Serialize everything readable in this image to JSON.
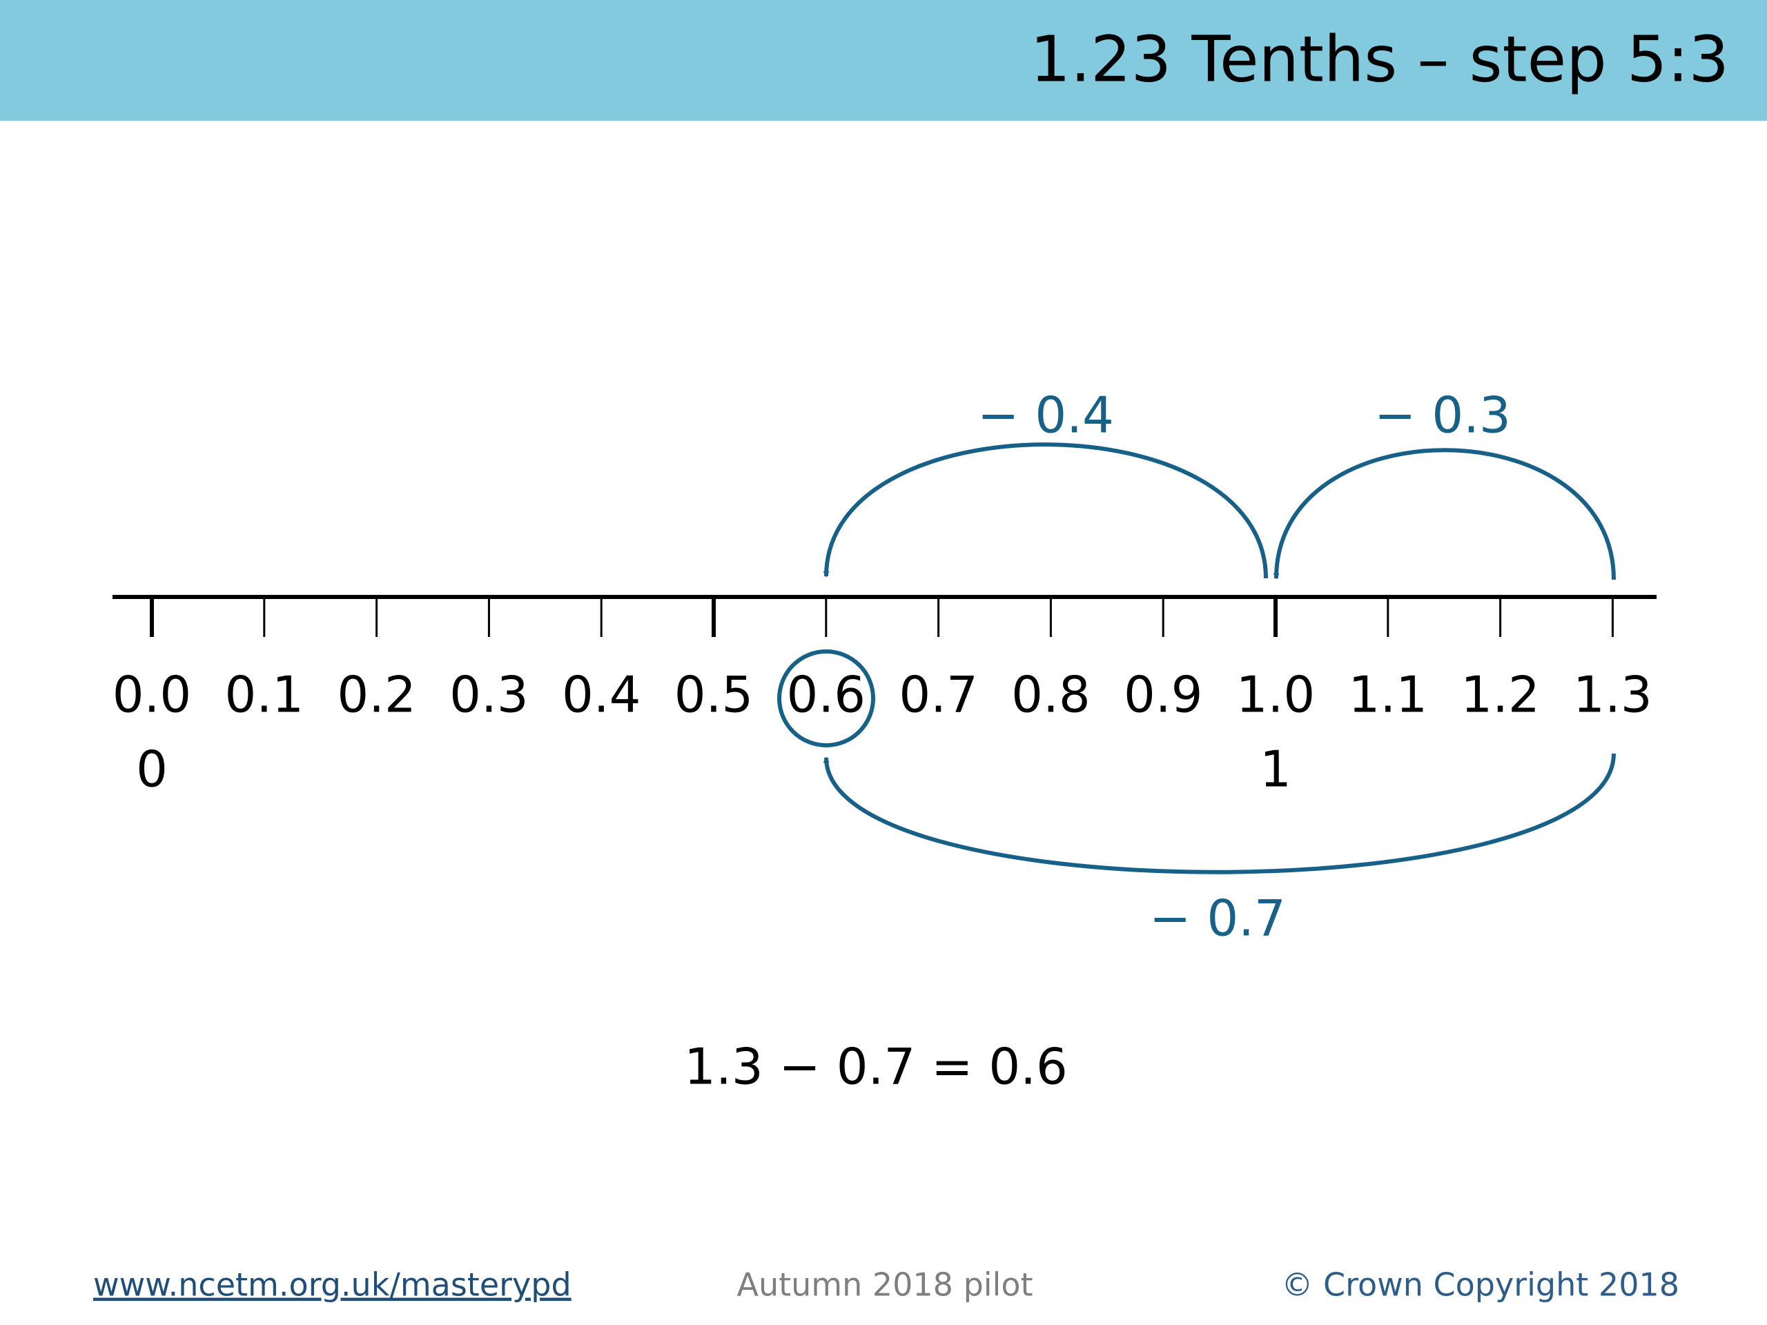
{
  "header": {
    "title": "1.23 Tenths – step 5:3"
  },
  "number_line": {
    "labels": [
      "0.0",
      "0.1",
      "0.2",
      "0.3",
      "0.4",
      "0.5",
      "0.6",
      "0.7",
      "0.8",
      "0.9",
      "1.0",
      "1.1",
      "1.2",
      "1.3"
    ],
    "whole_labels": [
      "0",
      "1"
    ]
  },
  "jumps": [
    {
      "label": "− 0.4"
    },
    {
      "label": "− 0.3"
    },
    {
      "label": "− 0.7"
    }
  ],
  "equation": "1.3 − 0.7 = 0.6",
  "footer": {
    "link": "www.ncetm.org.uk/masterypd",
    "center": "Autumn 2018 pilot",
    "copyright": "© Crown Copyright 2018"
  }
}
